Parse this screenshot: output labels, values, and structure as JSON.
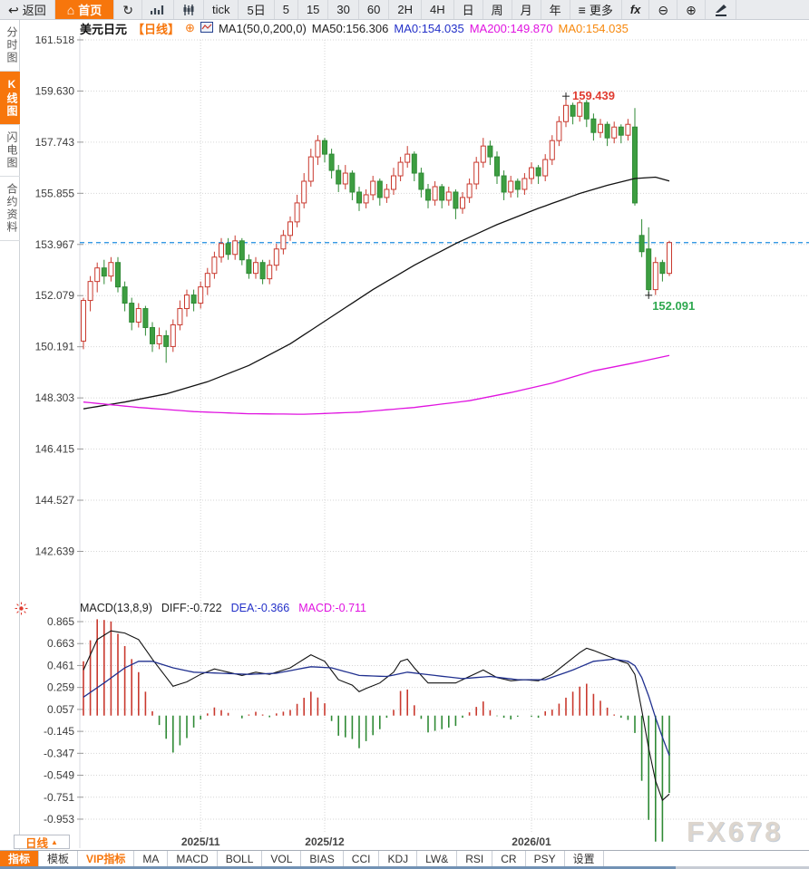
{
  "toolbar": {
    "back": "返回",
    "home": "首页",
    "tick": "tick",
    "d5": "5日",
    "m5": "5",
    "m15": "15",
    "m30": "30",
    "m60": "60",
    "h2": "2H",
    "h4": "4H",
    "day": "日",
    "week": "周",
    "month": "月",
    "year": "年",
    "more": "更多",
    "fx": "fx"
  },
  "symbol": {
    "name": "美元日元",
    "period": "【日线】",
    "ma_config": "MA1(50,0,200,0)",
    "ma50": "MA50:156.306",
    "ma0_blue": "MA0:154.035",
    "ma200": "MA200:149.870",
    "ma0_orange": "MA0:154.035"
  },
  "sidebar": {
    "items": [
      {
        "label": "分时图",
        "active": false
      },
      {
        "label": "K线图",
        "active": true
      },
      {
        "label": "闪电图",
        "active": false
      },
      {
        "label": "合约资料",
        "active": false
      }
    ]
  },
  "macd_header": {
    "title": "MACD(13,8,9)",
    "diff": "DIFF:-0.722",
    "dea": "DEA:-0.366",
    "macd": "MACD:-0.711"
  },
  "xaxis": {
    "period_button": "日线",
    "period_arrow": "▲"
  },
  "bottom_tabs": [
    "指标",
    "模板",
    "VIP指标",
    "MA",
    "MACD",
    "BOLL",
    "VOL",
    "BIAS",
    "CCI",
    "KDJ",
    "LW&",
    "RSI",
    "CR",
    "PSY",
    "设置"
  ],
  "watermark": "FX678",
  "chart_data": {
    "type": "candlestick+macd",
    "title": "美元日元 日线",
    "price_axis": [
      "161.518",
      "159.630",
      "157.743",
      "155.855",
      "153.967",
      "152.079",
      "150.191",
      "148.303",
      "146.415",
      "144.527",
      "142.639"
    ],
    "macd_axis": [
      "0.865",
      "0.663",
      "0.461",
      "0.259",
      "0.057",
      "-0.145",
      "-0.347",
      "-0.549",
      "-0.751",
      "-0.953"
    ],
    "x_labels": [
      {
        "label": "2025/11",
        "i": 17
      },
      {
        "label": "2025/12",
        "i": 35
      },
      {
        "label": "2026/01",
        "i": 65
      }
    ],
    "last_price_line": 154.035,
    "high_annotation": {
      "label": "159.439",
      "i": 70,
      "value": 159.439
    },
    "low_annotation": {
      "label": "152.091",
      "i": 82,
      "value": 152.091
    },
    "candles": [
      [
        150.4,
        152.0,
        150.1,
        151.9
      ],
      [
        151.9,
        152.8,
        151.5,
        152.6
      ],
      [
        152.6,
        153.3,
        152.2,
        153.1
      ],
      [
        153.1,
        153.4,
        152.5,
        152.8
      ],
      [
        152.8,
        153.5,
        152.6,
        153.3
      ],
      [
        153.3,
        153.5,
        152.2,
        152.4
      ],
      [
        152.4,
        152.6,
        151.5,
        151.8
      ],
      [
        151.8,
        152.0,
        150.8,
        151.1
      ],
      [
        151.1,
        151.8,
        150.9,
        151.6
      ],
      [
        151.6,
        151.7,
        150.6,
        150.9
      ],
      [
        150.9,
        151.1,
        150.0,
        150.3
      ],
      [
        150.3,
        150.9,
        150.1,
        150.6
      ],
      [
        150.6,
        150.8,
        149.6,
        150.2
      ],
      [
        150.2,
        151.2,
        150.0,
        151.0
      ],
      [
        151.0,
        151.9,
        150.8,
        151.6
      ],
      [
        151.6,
        152.3,
        151.3,
        152.1
      ],
      [
        152.1,
        152.3,
        151.5,
        151.8
      ],
      [
        151.8,
        152.6,
        151.6,
        152.4
      ],
      [
        152.4,
        153.1,
        152.1,
        152.9
      ],
      [
        152.9,
        153.7,
        152.7,
        153.5
      ],
      [
        153.5,
        154.2,
        153.3,
        154.0
      ],
      [
        154.0,
        154.2,
        153.4,
        153.6
      ],
      [
        153.6,
        154.3,
        153.4,
        154.1
      ],
      [
        154.1,
        154.2,
        153.2,
        153.4
      ],
      [
        153.4,
        153.6,
        152.7,
        152.9
      ],
      [
        152.9,
        153.5,
        152.7,
        153.3
      ],
      [
        153.3,
        153.4,
        152.5,
        152.7
      ],
      [
        152.7,
        153.4,
        152.5,
        153.2
      ],
      [
        153.2,
        154.0,
        153.0,
        153.8
      ],
      [
        153.8,
        154.5,
        153.6,
        154.3
      ],
      [
        154.3,
        155.0,
        154.1,
        154.8
      ],
      [
        154.8,
        155.8,
        154.6,
        155.5
      ],
      [
        155.5,
        156.6,
        155.3,
        156.3
      ],
      [
        156.3,
        157.5,
        156.1,
        157.2
      ],
      [
        157.2,
        158.0,
        156.9,
        157.8
      ],
      [
        157.8,
        157.9,
        157.0,
        157.3
      ],
      [
        157.3,
        157.5,
        156.4,
        156.7
      ],
      [
        156.7,
        156.9,
        155.9,
        156.2
      ],
      [
        156.2,
        156.9,
        156.0,
        156.6
      ],
      [
        156.6,
        156.7,
        155.6,
        155.9
      ],
      [
        155.9,
        156.1,
        155.2,
        155.5
      ],
      [
        155.5,
        156.0,
        155.3,
        155.8
      ],
      [
        155.8,
        156.5,
        155.6,
        156.3
      ],
      [
        156.3,
        156.4,
        155.4,
        155.7
      ],
      [
        155.7,
        156.2,
        155.5,
        156.0
      ],
      [
        156.0,
        156.8,
        155.8,
        156.5
      ],
      [
        156.5,
        157.2,
        156.3,
        157.0
      ],
      [
        157.0,
        157.6,
        156.8,
        157.3
      ],
      [
        157.3,
        157.4,
        156.3,
        156.6
      ],
      [
        156.6,
        156.8,
        155.7,
        156.0
      ],
      [
        156.0,
        156.2,
        155.3,
        155.6
      ],
      [
        155.6,
        156.3,
        155.4,
        156.1
      ],
      [
        156.1,
        156.2,
        155.3,
        155.6
      ],
      [
        155.6,
        156.1,
        155.4,
        155.9
      ],
      [
        155.9,
        156.0,
        154.9,
        155.3
      ],
      [
        155.3,
        155.9,
        155.1,
        155.7
      ],
      [
        155.7,
        156.4,
        155.5,
        156.2
      ],
      [
        156.2,
        157.2,
        156.0,
        157.0
      ],
      [
        157.0,
        157.9,
        156.8,
        157.6
      ],
      [
        157.6,
        157.8,
        156.9,
        157.2
      ],
      [
        157.2,
        157.4,
        156.2,
        156.5
      ],
      [
        156.5,
        156.7,
        155.6,
        155.9
      ],
      [
        155.9,
        156.5,
        155.7,
        156.3
      ],
      [
        156.3,
        156.4,
        155.7,
        156.0
      ],
      [
        156.0,
        156.6,
        155.8,
        156.4
      ],
      [
        156.4,
        157.0,
        156.2,
        156.8
      ],
      [
        156.8,
        156.9,
        156.2,
        156.5
      ],
      [
        156.5,
        157.3,
        156.3,
        157.1
      ],
      [
        157.1,
        158.0,
        156.9,
        157.8
      ],
      [
        157.8,
        158.7,
        157.6,
        158.5
      ],
      [
        158.5,
        159.439,
        158.3,
        159.1
      ],
      [
        159.1,
        159.2,
        158.4,
        158.7
      ],
      [
        158.7,
        159.3,
        158.5,
        159.2
      ],
      [
        159.2,
        159.3,
        158.3,
        158.6
      ],
      [
        158.6,
        158.8,
        157.8,
        158.1
      ],
      [
        158.1,
        158.6,
        157.9,
        158.4
      ],
      [
        158.4,
        158.5,
        157.6,
        157.9
      ],
      [
        157.9,
        158.5,
        157.7,
        158.3
      ],
      [
        158.3,
        158.4,
        157.7,
        158.0
      ],
      [
        158.0,
        158.6,
        157.8,
        158.4
      ],
      [
        158.3,
        159.0,
        155.4,
        155.5
      ],
      [
        154.3,
        154.9,
        153.5,
        153.7
      ],
      [
        153.8,
        154.6,
        152.091,
        152.3
      ],
      [
        152.3,
        153.5,
        152.1,
        153.3
      ],
      [
        153.3,
        153.4,
        152.6,
        152.9
      ],
      [
        152.9,
        154.1,
        152.8,
        154.035
      ]
    ],
    "ma50_points": [
      [
        0,
        147.9
      ],
      [
        6,
        148.15
      ],
      [
        12,
        148.45
      ],
      [
        18,
        148.9
      ],
      [
        24,
        149.5
      ],
      [
        30,
        150.3
      ],
      [
        36,
        151.3
      ],
      [
        42,
        152.3
      ],
      [
        48,
        153.2
      ],
      [
        54,
        154.0
      ],
      [
        60,
        154.7
      ],
      [
        66,
        155.3
      ],
      [
        72,
        155.85
      ],
      [
        76,
        156.15
      ],
      [
        80,
        156.4
      ],
      [
        83,
        156.45
      ],
      [
        85,
        156.31
      ]
    ],
    "ma200_points": [
      [
        0,
        148.15
      ],
      [
        8,
        147.95
      ],
      [
        16,
        147.8
      ],
      [
        24,
        147.72
      ],
      [
        32,
        147.7
      ],
      [
        40,
        147.78
      ],
      [
        48,
        147.95
      ],
      [
        56,
        148.2
      ],
      [
        62,
        148.5
      ],
      [
        68,
        148.85
      ],
      [
        74,
        149.3
      ],
      [
        80,
        149.6
      ],
      [
        85,
        149.87
      ]
    ],
    "diff_points": [
      [
        0,
        0.42
      ],
      [
        2,
        0.7
      ],
      [
        4,
        0.78
      ],
      [
        6,
        0.76
      ],
      [
        8,
        0.7
      ],
      [
        10,
        0.52
      ],
      [
        13,
        0.27
      ],
      [
        15,
        0.31
      ],
      [
        17,
        0.38
      ],
      [
        19,
        0.43
      ],
      [
        21,
        0.4
      ],
      [
        23,
        0.37
      ],
      [
        25,
        0.4
      ],
      [
        27,
        0.38
      ],
      [
        30,
        0.44
      ],
      [
        33,
        0.56
      ],
      [
        35,
        0.5
      ],
      [
        37,
        0.33
      ],
      [
        39,
        0.28
      ],
      [
        40,
        0.22
      ],
      [
        41,
        0.25
      ],
      [
        43,
        0.3
      ],
      [
        45,
        0.4
      ],
      [
        46,
        0.5
      ],
      [
        47,
        0.52
      ],
      [
        48,
        0.44
      ],
      [
        50,
        0.3
      ],
      [
        52,
        0.3
      ],
      [
        54,
        0.3
      ],
      [
        56,
        0.36
      ],
      [
        58,
        0.42
      ],
      [
        60,
        0.35
      ],
      [
        62,
        0.32
      ],
      [
        64,
        0.33
      ],
      [
        66,
        0.32
      ],
      [
        68,
        0.38
      ],
      [
        70,
        0.48
      ],
      [
        72,
        0.58
      ],
      [
        73,
        0.62
      ],
      [
        74,
        0.6
      ],
      [
        76,
        0.55
      ],
      [
        78,
        0.5
      ],
      [
        79,
        0.48
      ],
      [
        80,
        0.38
      ],
      [
        81,
        0.05
      ],
      [
        82,
        -0.3
      ],
      [
        83,
        -0.6
      ],
      [
        84,
        -0.78
      ],
      [
        85,
        -0.722
      ]
    ],
    "dea_points": [
      [
        0,
        0.17
      ],
      [
        3,
        0.3
      ],
      [
        6,
        0.44
      ],
      [
        8,
        0.5
      ],
      [
        10,
        0.5
      ],
      [
        13,
        0.44
      ],
      [
        16,
        0.4
      ],
      [
        20,
        0.39
      ],
      [
        24,
        0.38
      ],
      [
        28,
        0.39
      ],
      [
        33,
        0.45
      ],
      [
        36,
        0.44
      ],
      [
        40,
        0.37
      ],
      [
        44,
        0.36
      ],
      [
        47,
        0.4
      ],
      [
        51,
        0.37
      ],
      [
        55,
        0.34
      ],
      [
        59,
        0.36
      ],
      [
        63,
        0.33
      ],
      [
        67,
        0.33
      ],
      [
        71,
        0.42
      ],
      [
        74,
        0.5
      ],
      [
        77,
        0.52
      ],
      [
        79,
        0.5
      ],
      [
        80,
        0.46
      ],
      [
        81,
        0.35
      ],
      [
        82,
        0.18
      ],
      [
        83,
        -0.02
      ],
      [
        84,
        -0.2
      ],
      [
        85,
        -0.366
      ]
    ],
    "colors": {
      "up": "#c9392e",
      "down_fill": "#3d9e41",
      "down_stroke": "#2f8a35",
      "ma50": "#111111",
      "ma200": "#e013e0",
      "diff": "#111111",
      "dea": "#20308f",
      "last_price": "#1d8ce0",
      "grid": "#d6d6d6",
      "high_label": "#e03c31",
      "low_label": "#2ea84f"
    }
  }
}
